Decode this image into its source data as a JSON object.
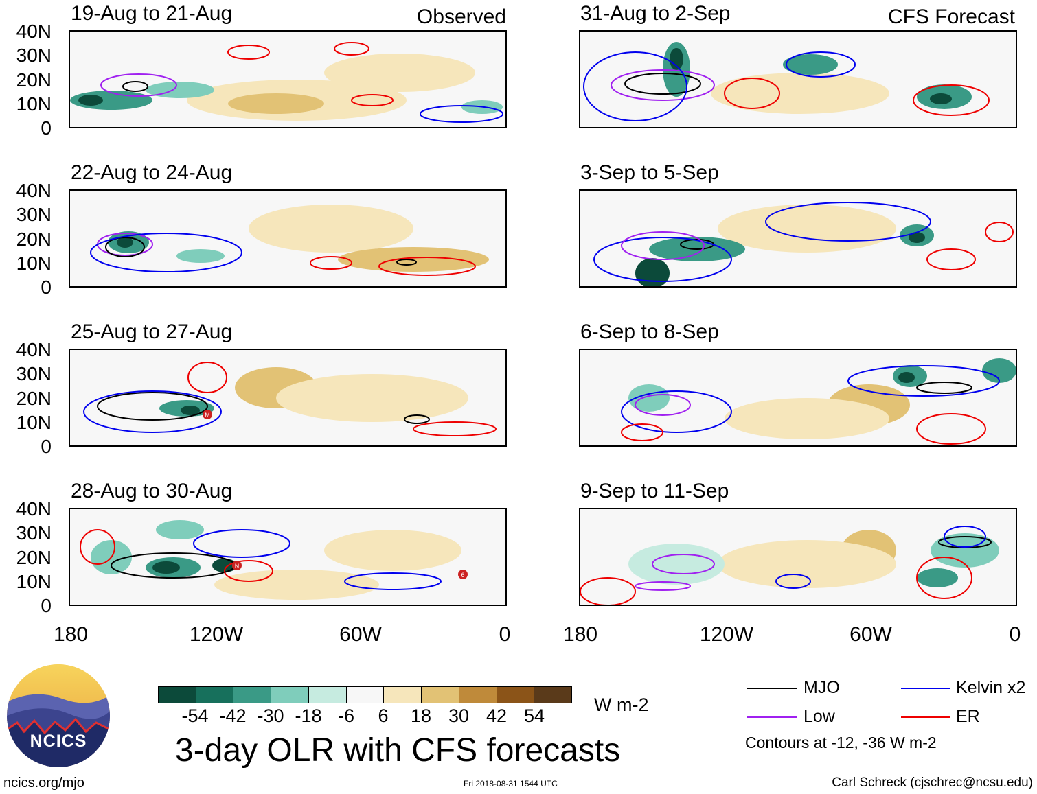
{
  "header": {
    "observed_label": "Observed",
    "forecast_label": "CFS Forecast"
  },
  "panels": {
    "observed": [
      "19-Aug to 21-Aug",
      "22-Aug to 24-Aug",
      "25-Aug to 27-Aug",
      "28-Aug to 30-Aug"
    ],
    "forecast": [
      "31-Aug to 2-Sep",
      "3-Sep to 5-Sep",
      "6-Sep to 8-Sep",
      "9-Sep to 11-Sep"
    ]
  },
  "axes": {
    "lat_labels": [
      "40N",
      "30N",
      "20N",
      "10N",
      "0"
    ],
    "lon_labels": [
      "180",
      "120W",
      "60W",
      "0"
    ]
  },
  "colorbar": {
    "ticks": [
      "-54",
      "-42",
      "-30",
      "-18",
      "-6",
      "6",
      "18",
      "30",
      "42",
      "54"
    ],
    "colors": [
      "#0c4a3a",
      "#17705c",
      "#3a9a86",
      "#7fcdbb",
      "#c6ebe0",
      "#f7f7f7",
      "#f6e6bb",
      "#e2c275",
      "#bf8a3a",
      "#8b5418",
      "#5a3a1a"
    ],
    "units": "W m-2"
  },
  "legend": {
    "items": [
      {
        "label": "MJO",
        "color": "#000000"
      },
      {
        "label": "Kelvin x2",
        "color": "#0000ee"
      },
      {
        "label": "Low",
        "color": "#a020f0"
      },
      {
        "label": "ER",
        "color": "#ee0000"
      }
    ],
    "note": "Contours at -12, -36 W m-2"
  },
  "title": "3-day OLR with CFS forecasts",
  "footer": {
    "url": "ncics.org/mjo",
    "timestamp": "Fri 2018-08-31 1544 UTC",
    "credit": "Carl Schreck (cjschrec@ncsu.edu)"
  },
  "logo": {
    "text": "NCICS"
  },
  "storms": [
    {
      "panel": "obs-3",
      "symbol": "M"
    },
    {
      "panel": "obs-4",
      "symbol": "N"
    },
    {
      "panel": "obs-4",
      "symbol": "6"
    }
  ]
}
